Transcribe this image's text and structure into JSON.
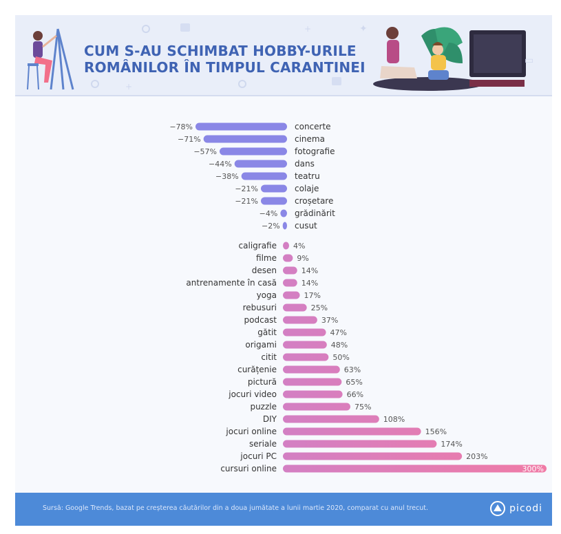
{
  "header": {
    "title_line1": "CUM S-AU SCHIMBAT HOBBY-URILE",
    "title_line2": "ROMÂNILOR ÎN TIMPUL CARANTINEI"
  },
  "footer": {
    "source": "Sursă: Google Trends, bazat pe creșterea căutărilor din a doua jumătate a lunii martie 2020, comparat cu anul trecut.",
    "brand": "picodi"
  },
  "colors": {
    "negative": "#8a87e6",
    "positive_start": "#d37fc3",
    "positive_end": "#f07ba6",
    "title": "#3f63b3",
    "footer": "#4d8ad8"
  },
  "chart_data": {
    "type": "bar",
    "orientation": "horizontal",
    "unit": "%",
    "negative": [
      {
        "label": "concerte",
        "value": -78,
        "value_label": "−78%"
      },
      {
        "label": "cinema",
        "value": -71,
        "value_label": "−71%"
      },
      {
        "label": "fotografie",
        "value": -57,
        "value_label": "−57%"
      },
      {
        "label": "dans",
        "value": -44,
        "value_label": "−44%"
      },
      {
        "label": "teatru",
        "value": -38,
        "value_label": "−38%"
      },
      {
        "label": "colaje",
        "value": -21,
        "value_label": "−21%"
      },
      {
        "label": "croșetare",
        "value": -21,
        "value_label": "−21%"
      },
      {
        "label": "grădinărit",
        "value": -4,
        "value_label": "−4%"
      },
      {
        "label": "cusut",
        "value": -2,
        "value_label": "−2%"
      }
    ],
    "positive": [
      {
        "label": "caligrafie",
        "value": 4,
        "value_label": "4%"
      },
      {
        "label": "filme",
        "value": 9,
        "value_label": "9%"
      },
      {
        "label": "desen",
        "value": 14,
        "value_label": "14%"
      },
      {
        "label": "antrenamente în casă",
        "value": 14,
        "value_label": "14%"
      },
      {
        "label": "yoga",
        "value": 17,
        "value_label": "17%"
      },
      {
        "label": "rebusuri",
        "value": 25,
        "value_label": "25%"
      },
      {
        "label": "podcast",
        "value": 37,
        "value_label": "37%"
      },
      {
        "label": "gătit",
        "value": 47,
        "value_label": "47%"
      },
      {
        "label": "origami",
        "value": 48,
        "value_label": "48%"
      },
      {
        "label": "citit",
        "value": 50,
        "value_label": "50%"
      },
      {
        "label": "curățenie",
        "value": 63,
        "value_label": "63%"
      },
      {
        "label": "pictură",
        "value": 65,
        "value_label": "65%"
      },
      {
        "label": "jocuri video",
        "value": 66,
        "value_label": "66%"
      },
      {
        "label": "puzzle",
        "value": 75,
        "value_label": "75%"
      },
      {
        "label": "DIY",
        "value": 108,
        "value_label": "108%"
      },
      {
        "label": "jocuri online",
        "value": 156,
        "value_label": "156%"
      },
      {
        "label": "seriale",
        "value": 174,
        "value_label": "174%"
      },
      {
        "label": "jocuri PC",
        "value": 203,
        "value_label": "203%"
      },
      {
        "label": "cursuri online",
        "value": 300,
        "value_label": "300%"
      }
    ]
  }
}
